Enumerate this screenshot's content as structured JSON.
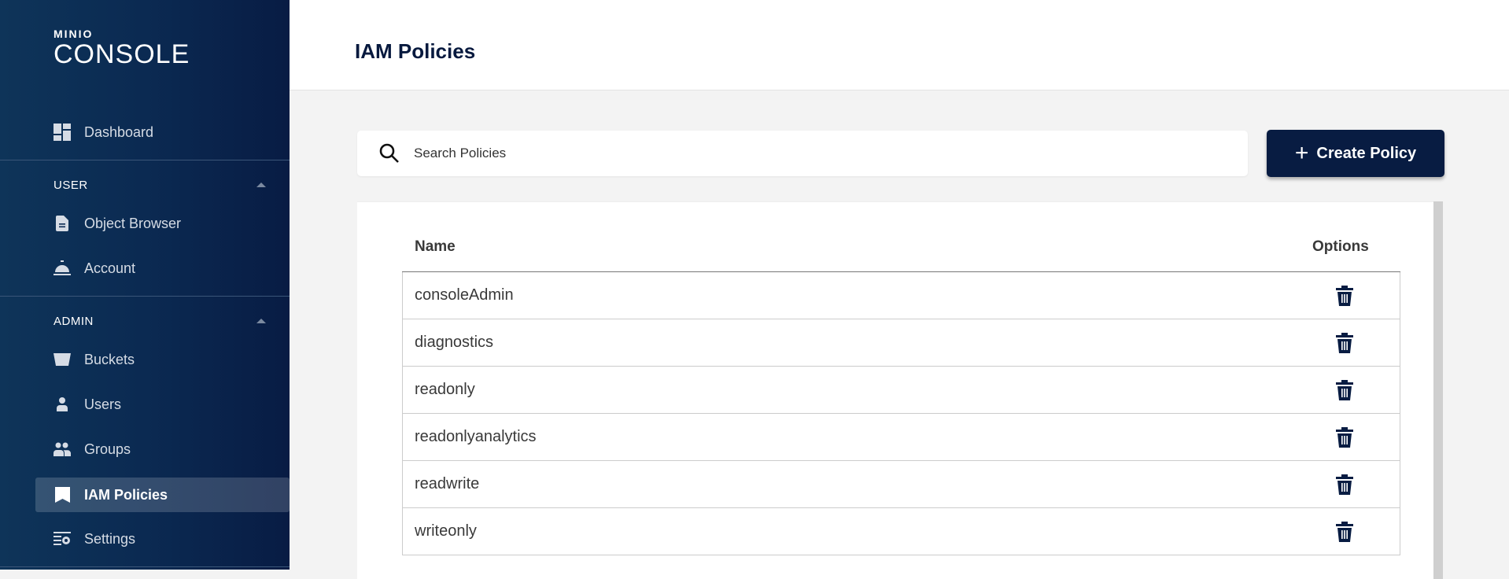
{
  "sidebar": {
    "logo": {
      "top": "MINIO",
      "bottom": "CONSOLE"
    },
    "dashboard": "Dashboard",
    "user_section": "USER",
    "object_browser": "Object Browser",
    "account": "Account",
    "admin_section": "ADMIN",
    "buckets": "Buckets",
    "users": "Users",
    "groups": "Groups",
    "iam_policies": "IAM Policies",
    "settings": "Settings",
    "active": "IAM Policies"
  },
  "header": {
    "title": "IAM Policies"
  },
  "search": {
    "placeholder": "Search Policies",
    "value": ""
  },
  "toolbar": {
    "create_label": "Create Policy"
  },
  "table": {
    "columns": [
      "Name",
      "Options"
    ],
    "rows": [
      {
        "name": "consoleAdmin"
      },
      {
        "name": "diagnostics"
      },
      {
        "name": "readonly"
      },
      {
        "name": "readonlyanalytics"
      },
      {
        "name": "readwrite"
      },
      {
        "name": "writeonly"
      }
    ]
  },
  "colors": {
    "brand": "#081c42",
    "sidebar": "#0b2a52"
  }
}
